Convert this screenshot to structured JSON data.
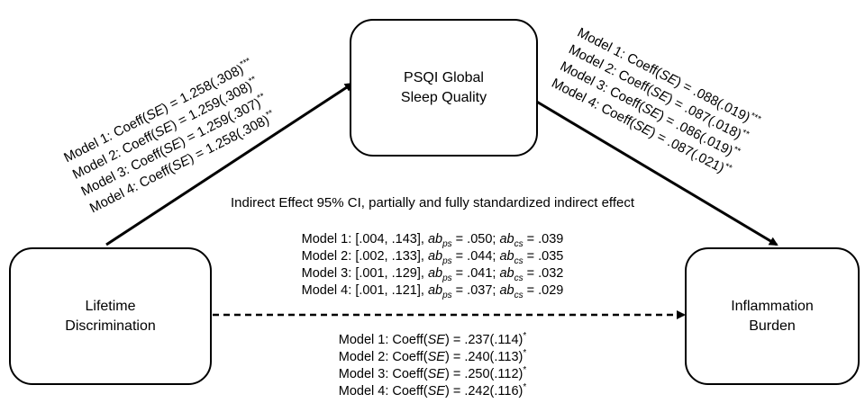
{
  "nodes": {
    "mediator": [
      "PSQI Global",
      "Sleep Quality"
    ],
    "predictor": [
      "Lifetime",
      "Discrimination"
    ],
    "outcome": [
      "Inflammation",
      "Burden"
    ]
  },
  "path_a": [
    {
      "model": "Model 1",
      "label": "Coeff(",
      "se": "SE",
      "value": ") = 1.258(.308)",
      "sig": "***"
    },
    {
      "model": "Model 2",
      "label": "Coeff(",
      "se": "SE",
      "value": ") = 1.259(.308)",
      "sig": "**"
    },
    {
      "model": "Model 3",
      "label": "Coeff(",
      "se": "SE",
      "value": ") = 1.259(.307)",
      "sig": "**"
    },
    {
      "model": "Model 4",
      "label": "Coeff(",
      "se": "SE",
      "value": ") = 1.258(.308)",
      "sig": "**"
    }
  ],
  "path_b": [
    {
      "model": "Model 1",
      "label": "Coeff(",
      "se": "SE",
      "value": ") = .088(.019)",
      "sig": "***"
    },
    {
      "model": "Model 2",
      "label": "Coeff(",
      "se": "SE",
      "value": ") = .087(.018)",
      "sig": "**"
    },
    {
      "model": "Model 3",
      "label": "Coeff(",
      "se": "SE",
      "value": ") = .086(.019)",
      "sig": "**"
    },
    {
      "model": "Model 4",
      "label": "Coeff(",
      "se": "SE",
      "value": ") = .087(.021)",
      "sig": "**"
    }
  ],
  "indirect": {
    "title": "Indirect Effect 95% CI, partially and fully standardized indirect effect",
    "ab": "ab",
    "ps": "ps",
    "cs": "cs",
    "rows": [
      {
        "model": "Model 1",
        "ci": "[.004, .143]",
        "ps_val": " = .050; ",
        "cs_val": " = .039"
      },
      {
        "model": "Model 2",
        "ci": "[.002, .133]",
        "ps_val": " = .044; ",
        "cs_val": " = .035"
      },
      {
        "model": "Model 3",
        "ci": "[.001, .129]",
        "ps_val": " = .041; ",
        "cs_val": " = .032"
      },
      {
        "model": "Model 4",
        "ci": "[.001, .121]",
        "ps_val": " = .037; ",
        "cs_val": " = .029"
      }
    ]
  },
  "direct": [
    {
      "model": "Model 1",
      "label": "Coeff(",
      "se": "SE",
      "value": ") = .237(.114)",
      "sig": "*"
    },
    {
      "model": "Model 2",
      "label": "Coeff(",
      "se": "SE",
      "value": ") = .240(.113)",
      "sig": "*"
    },
    {
      "model": "Model 3",
      "label": "Coeff(",
      "se": "SE",
      "value": ") = .250(.112)",
      "sig": "*"
    },
    {
      "model": "Model 4",
      "label": "Coeff(",
      "se": "SE",
      "value": ") = .242(.116)",
      "sig": "*"
    }
  ]
}
